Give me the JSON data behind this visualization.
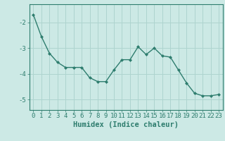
{
  "x": [
    0,
    1,
    2,
    3,
    4,
    5,
    6,
    7,
    8,
    9,
    10,
    11,
    12,
    13,
    14,
    15,
    16,
    17,
    18,
    19,
    20,
    21,
    22,
    23
  ],
  "y": [
    -1.7,
    -2.55,
    -3.2,
    -3.55,
    -3.75,
    -3.75,
    -3.75,
    -4.15,
    -4.3,
    -4.3,
    -3.85,
    -3.45,
    -3.45,
    -2.95,
    -3.25,
    -3.0,
    -3.3,
    -3.35,
    -3.85,
    -4.35,
    -4.75,
    -4.85,
    -4.85,
    -4.8
  ],
  "line_color": "#2e7d6e",
  "marker": "D",
  "marker_size": 2,
  "bg_color": "#cce9e5",
  "grid_color": "#aed4cf",
  "axis_color": "#2e7d6e",
  "xlabel": "Humidex (Indice chaleur)",
  "ylim": [
    -5.4,
    -1.3
  ],
  "xlim": [
    -0.5,
    23.5
  ],
  "yticks": [
    -5,
    -4,
    -3,
    -2
  ],
  "xticks": [
    0,
    1,
    2,
    3,
    4,
    5,
    6,
    7,
    8,
    9,
    10,
    11,
    12,
    13,
    14,
    15,
    16,
    17,
    18,
    19,
    20,
    21,
    22,
    23
  ],
  "font_size": 6.5,
  "xlabel_fontsize": 7.5
}
